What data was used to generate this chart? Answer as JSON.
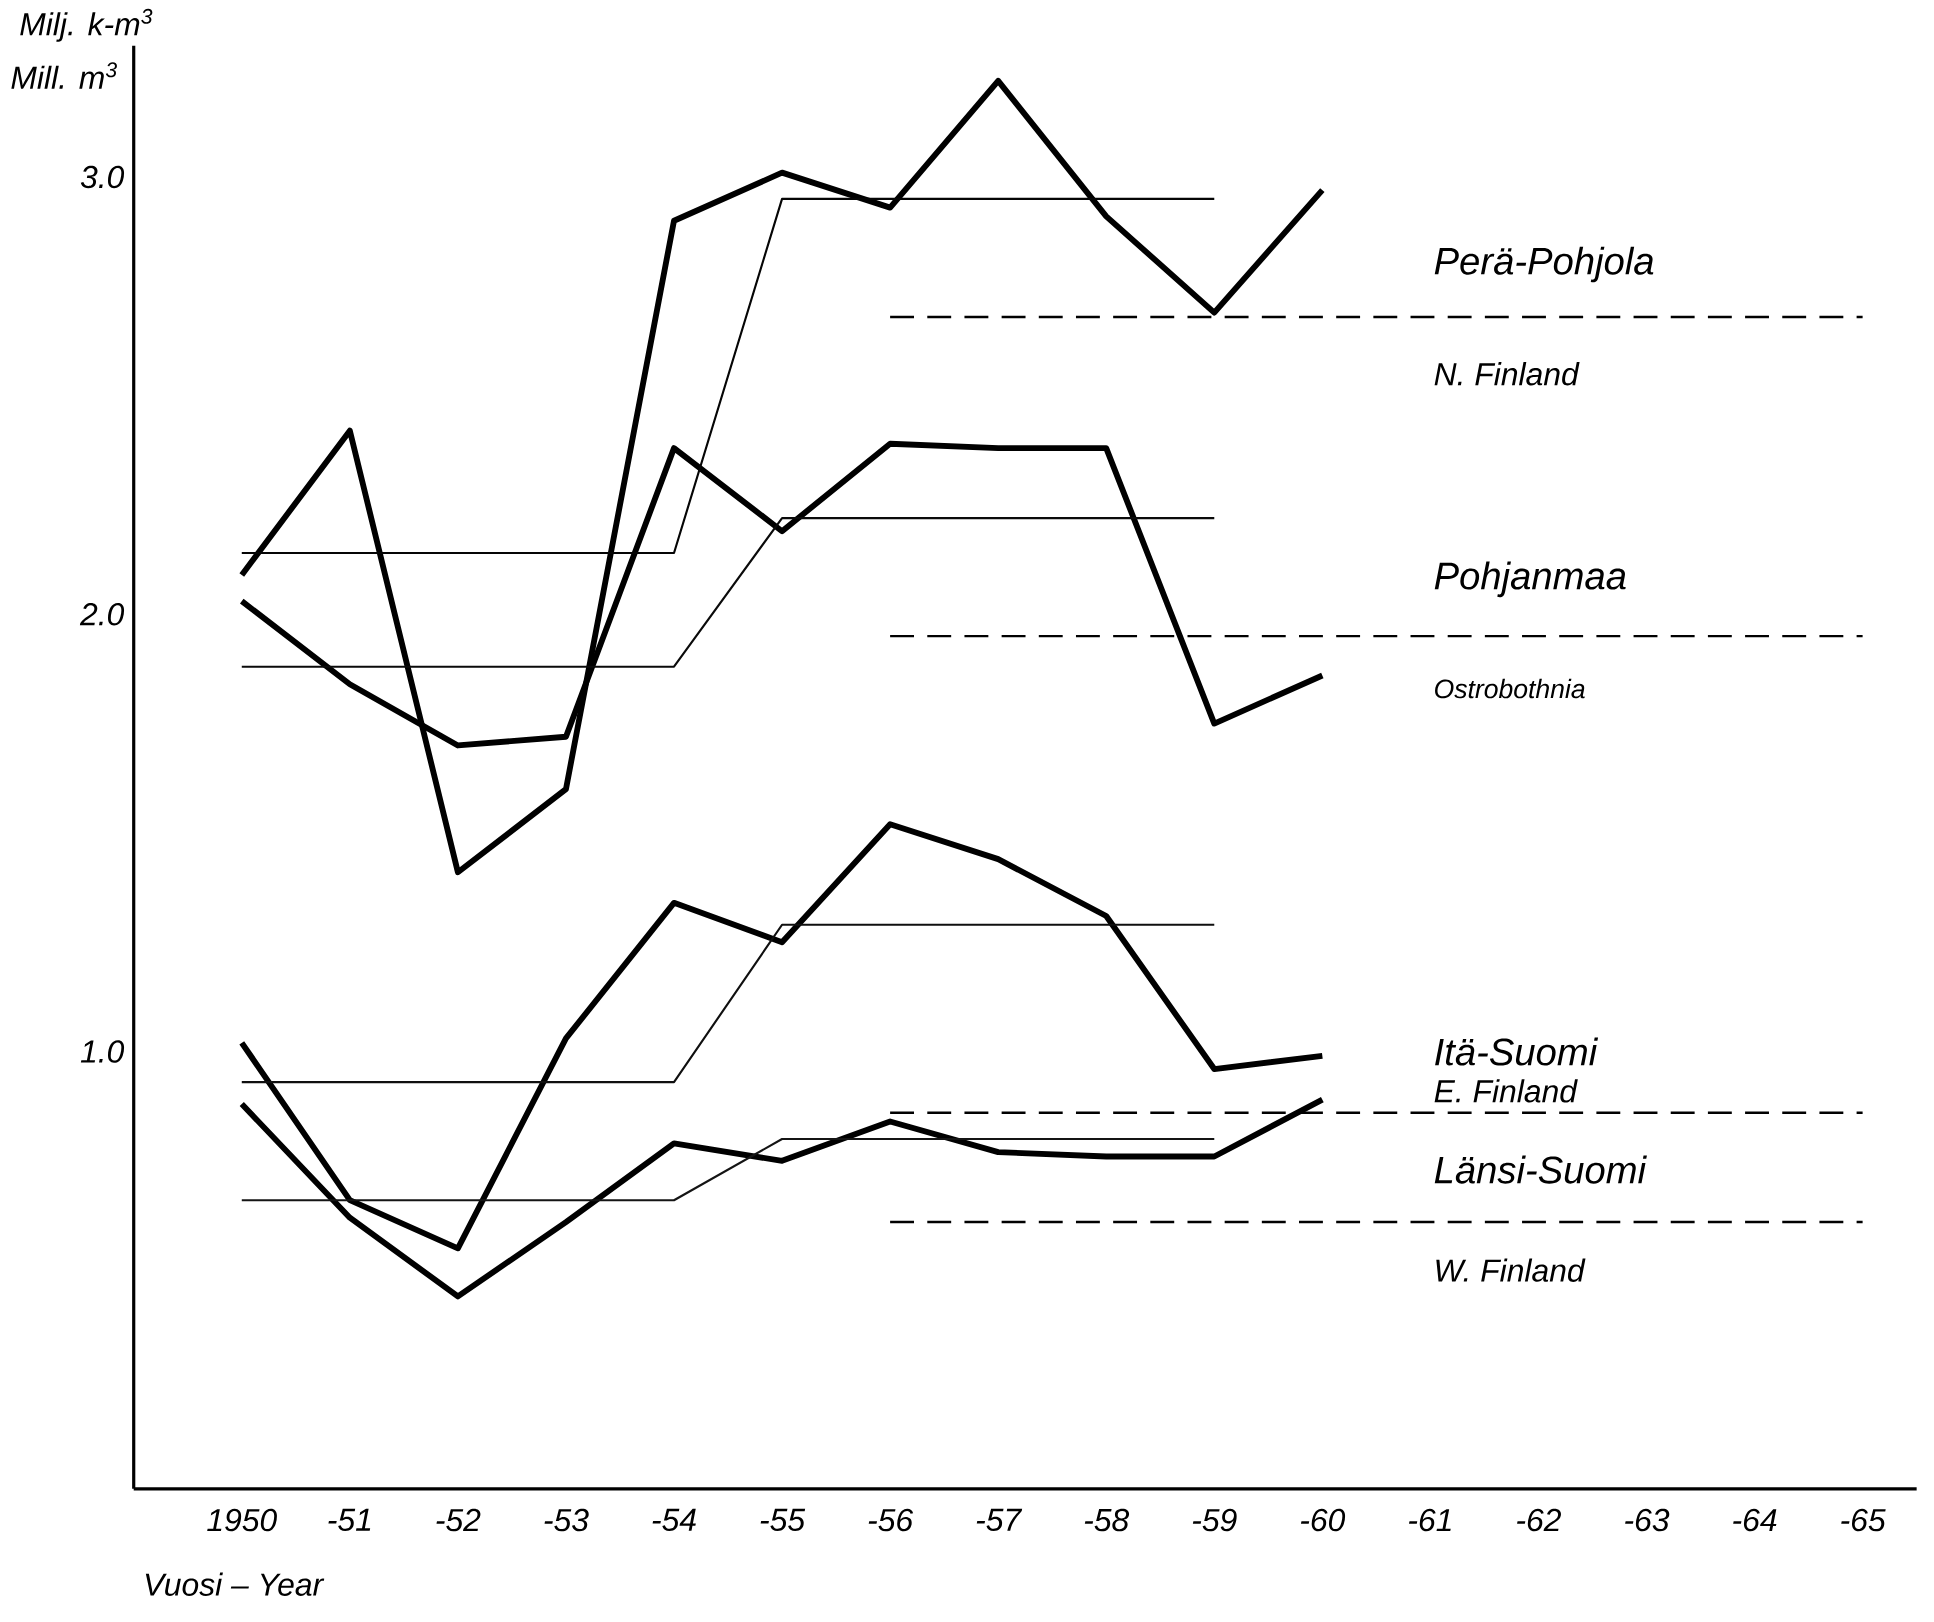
{
  "chart_data": {
    "type": "line",
    "xlabel": "Vuosi – Year",
    "ylabel": "Milj. k-m$^{3}$",
    "annotations": [
      "Mill. m$^{3}$",
      "Perä-Pohjola",
      "N. Finland",
      "Pohjanmaa",
      "Ostrobothnia",
      "Itä-Suomi",
      "E. Finland",
      "Länsi-Suomi",
      "W. Finland"
    ],
    "ylim": [
      0,
      3.3
    ],
    "categories": [
      "1950",
      "-51",
      "-52",
      "-53",
      "-54",
      "-55",
      "-56",
      "-57",
      "-58",
      "-59",
      "-60",
      "-61",
      "-62",
      "-63",
      "-64",
      "-65"
    ],
    "yticks": [
      {
        "value": 1,
        "label": "1.0"
      },
      {
        "value": 2,
        "label": "2.0"
      },
      {
        "value": 3,
        "label": "3.0"
      }
    ],
    "grid": false,
    "legend": false,
    "marker": "none",
    "series": [
      {
        "color": "#000000",
        "values": [
          2.09,
          2.42,
          1.41,
          1.6,
          2.9,
          3.01,
          2.93,
          3.22,
          2.91,
          2.69,
          2.97,
          null,
          null,
          null,
          null,
          null
        ]
      },
      {
        "color": "#000000",
        "values": [
          2.03,
          1.84,
          1.7,
          1.72,
          2.38,
          2.19,
          2.39,
          2.38,
          2.38,
          1.75,
          1.86,
          null,
          null,
          null,
          null,
          null
        ]
      },
      {
        "color": "#000000",
        "values": [
          1.02,
          0.66,
          0.55,
          1.03,
          1.34,
          1.25,
          1.52,
          1.44,
          1.31,
          0.96,
          0.99,
          null,
          null,
          null,
          null,
          null
        ]
      },
      {
        "color": "#000000",
        "values": [
          0.88,
          0.62,
          0.44,
          0.61,
          0.79,
          0.75,
          0.84,
          0.77,
          0.76,
          0.76,
          0.89,
          null,
          null,
          null,
          null,
          null
        ]
      },
      {
        "type": "line",
        "line_style": "solid",
        "color": "#050505",
        "values": [
          2.14,
          2.14,
          2.14,
          2.14,
          2.14,
          2.95,
          2.95,
          2.95,
          2.95,
          2.95,
          null,
          null,
          null,
          null,
          null,
          null
        ]
      },
      {
        "type": "line",
        "line_style": "solid",
        "color": "#0a0a0a",
        "values": [
          1.88,
          1.88,
          1.88,
          1.88,
          1.88,
          2.22,
          2.22,
          2.22,
          2.22,
          2.22,
          null,
          null,
          null,
          null,
          null,
          null
        ]
      },
      {
        "type": "line",
        "line_style": "solid",
        "color": "#0f0f0f",
        "values": [
          0.93,
          0.93,
          0.93,
          0.93,
          0.93,
          1.29,
          1.29,
          1.29,
          1.29,
          1.29,
          null,
          null,
          null,
          null,
          null,
          null
        ]
      },
      {
        "type": "line",
        "line_style": "solid",
        "color": "#141414",
        "values": [
          0.66,
          0.66,
          0.66,
          0.66,
          0.66,
          0.8,
          0.8,
          0.8,
          0.8,
          0.8,
          null,
          null,
          null,
          null,
          null,
          null
        ]
      },
      {
        "color": "#000000",
        "line_style": "dashed",
        "values": [
          null,
          null,
          null,
          null,
          null,
          null,
          2.68,
          2.68,
          2.68,
          2.68,
          2.68,
          2.68,
          2.68,
          2.68,
          2.68,
          2.68
        ]
      },
      {
        "color": "#000000",
        "line_style": "dashed",
        "values": [
          null,
          null,
          null,
          null,
          null,
          null,
          1.95,
          1.95,
          1.95,
          1.95,
          1.95,
          1.95,
          1.95,
          1.95,
          1.95,
          1.95
        ]
      },
      {
        "color": "#000000",
        "line_style": "dashed",
        "values": [
          null,
          null,
          null,
          null,
          null,
          null,
          0.86,
          0.86,
          0.86,
          0.86,
          0.86,
          0.86,
          0.86,
          0.86,
          0.86,
          0.86
        ]
      },
      {
        "color": "#000000",
        "line_style": "dashed",
        "values": [
          null,
          null,
          null,
          null,
          null,
          null,
          0.61,
          0.61,
          0.61,
          0.61,
          0.61,
          0.61,
          0.61,
          0.61,
          0.61,
          0.61
        ]
      }
    ]
  }
}
